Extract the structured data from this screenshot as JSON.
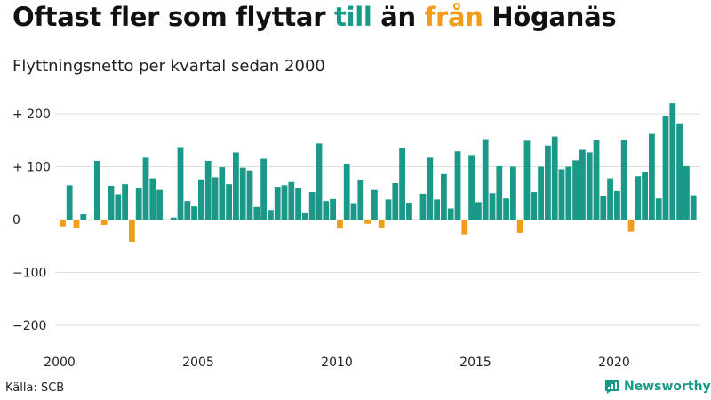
{
  "title": {
    "part1": "Oftast fler som flyttar ",
    "increase_word": "till",
    "part2": " än ",
    "decrease_word": "från",
    "part3": " Höganäs"
  },
  "source": "Källa: SCB",
  "brand": "Newsworthy",
  "colors": {
    "increase": "#1a9988",
    "decrease": "#f29c1c",
    "grid": "#dddddd",
    "axis": "#333333"
  },
  "chart_data": {
    "type": "bar",
    "title": "Oftast fler som flyttar till än från Höganäs",
    "subtitle": "Flyttningsnetto per kvartal sedan 2000",
    "xlabel": "",
    "ylabel": "",
    "ylim": [
      -220,
      230
    ],
    "yticks": [
      {
        "value": 200,
        "label": "+ 200"
      },
      {
        "value": 100,
        "label": "+ 100"
      },
      {
        "value": 0,
        "label": "0"
      },
      {
        "value": -100,
        "label": "−100"
      },
      {
        "value": -200,
        "label": "−200"
      }
    ],
    "xticks": [
      "2000",
      "2005",
      "2010",
      "2015",
      "2020"
    ],
    "grid": true,
    "start": {
      "year": 2000,
      "quarter": 1
    },
    "values": [
      -13,
      65,
      -15,
      10,
      -2,
      111,
      -10,
      64,
      48,
      67,
      -42,
      60,
      117,
      78,
      56,
      0,
      4,
      137,
      35,
      25,
      76,
      111,
      80,
      99,
      67,
      127,
      98,
      93,
      24,
      115,
      18,
      62,
      65,
      71,
      59,
      12,
      52,
      144,
      35,
      39,
      -17,
      106,
      31,
      75,
      -8,
      56,
      -15,
      38,
      69,
      135,
      32,
      0,
      49,
      117,
      38,
      86,
      21,
      129,
      -28,
      122,
      33,
      152,
      50,
      101,
      40,
      100,
      -25,
      149,
      52,
      100,
      140,
      157,
      95,
      100,
      112,
      132,
      127,
      150,
      45,
      78,
      54,
      150,
      -23,
      82,
      90,
      162,
      40,
      196,
      220,
      182,
      101,
      46
    ]
  }
}
